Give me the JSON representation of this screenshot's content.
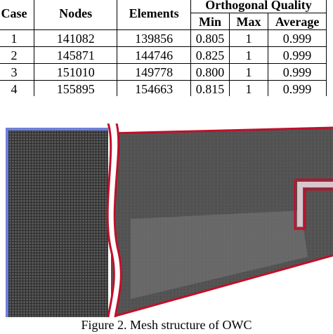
{
  "table": {
    "headers": {
      "case": "Case",
      "nodes": "Nodes",
      "elements": "Elements",
      "group": "Orthogonal Quality",
      "min": "Min",
      "max": "Max",
      "average": "Average"
    },
    "rows": [
      {
        "case": "1",
        "nodes": "141082",
        "elements": "139856",
        "min": "0.805",
        "max": "1",
        "average": "0.999"
      },
      {
        "case": "2",
        "nodes": "145871",
        "elements": "144746",
        "min": "0.825",
        "max": "1",
        "average": "0.999"
      },
      {
        "case": "3",
        "nodes": "151010",
        "elements": "149778",
        "min": "0.800",
        "max": "1",
        "average": "0.999"
      },
      {
        "case": "4",
        "nodes": "155895",
        "elements": "154663",
        "min": "0.815",
        "max": "1",
        "average": "0.999"
      }
    ]
  },
  "figure": {
    "caption": "Figure 2. Mesh structure of OWC",
    "colors": {
      "mesh_fill": "#4a4a4a",
      "mesh_light": "#6c6c6c",
      "boundary_red": "#c0102a",
      "blue_edge": "#6f7fd8",
      "background": "#ffffff"
    }
  }
}
